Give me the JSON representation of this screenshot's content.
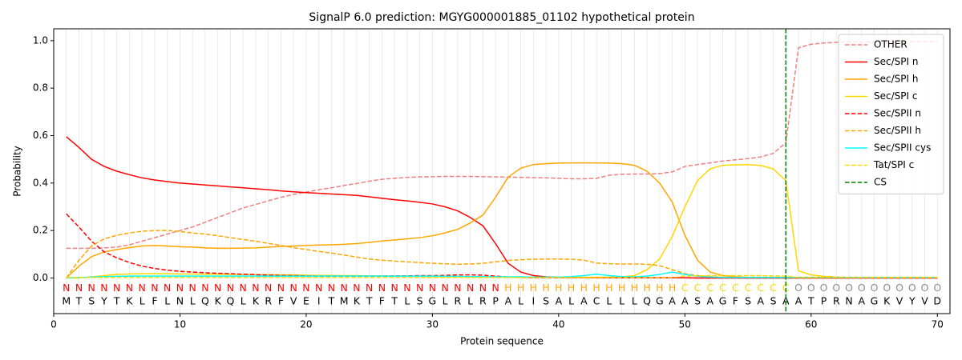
{
  "chart_data": {
    "type": "line",
    "title": "SignalP 6.0 prediction: MGYG000001885_01102 hypothetical protein",
    "xlabel": "Protein sequence",
    "ylabel": "Probability",
    "xlim": [
      0,
      71
    ],
    "ylim": [
      -0.15,
      1.05
    ],
    "xticks": [
      0,
      10,
      20,
      30,
      40,
      50,
      60,
      70
    ],
    "yticks": [
      {
        "value": 0,
        "label": "0.0"
      },
      {
        "value": 0.2,
        "label": "0.2"
      },
      {
        "value": 0.4,
        "label": "0.4"
      },
      {
        "value": 0.6,
        "label": "0.6"
      },
      {
        "value": 0.8,
        "label": "0.8"
      },
      {
        "value": 1,
        "label": "1.0"
      }
    ],
    "grid": true,
    "legend": "upper right",
    "x": [
      1,
      2,
      3,
      4,
      5,
      6,
      7,
      8,
      9,
      10,
      11,
      12,
      13,
      14,
      15,
      16,
      17,
      18,
      19,
      20,
      21,
      22,
      23,
      24,
      25,
      26,
      27,
      28,
      29,
      30,
      31,
      32,
      33,
      34,
      35,
      36,
      37,
      38,
      39,
      40,
      41,
      42,
      43,
      44,
      45,
      46,
      47,
      48,
      49,
      50,
      51,
      52,
      53,
      54,
      55,
      56,
      57,
      58,
      59,
      60,
      61,
      62,
      63,
      64,
      65,
      66,
      67,
      68,
      69,
      70
    ],
    "residues": [
      "M",
      "T",
      "S",
      "Y",
      "T",
      "K",
      "L",
      "F",
      "L",
      "N",
      "L",
      "Q",
      "K",
      "Q",
      "L",
      "K",
      "R",
      "F",
      "V",
      "E",
      "I",
      "T",
      "M",
      "K",
      "T",
      "F",
      "T",
      "L",
      "S",
      "G",
      "L",
      "R",
      "L",
      "R",
      "P",
      "A",
      "L",
      "I",
      "S",
      "A",
      "L",
      "A",
      "C",
      "L",
      "L",
      "L",
      "Q",
      "G",
      "A",
      "A",
      "S",
      "A",
      "G",
      "F",
      "S",
      "A",
      "S",
      "A",
      "A",
      "T",
      "P",
      "R",
      "N",
      "A",
      "G",
      "K",
      "V",
      "Y",
      "V",
      "D"
    ],
    "regions": [
      "N",
      "N",
      "N",
      "N",
      "N",
      "N",
      "N",
      "N",
      "N",
      "N",
      "N",
      "N",
      "N",
      "N",
      "N",
      "N",
      "N",
      "N",
      "N",
      "N",
      "N",
      "N",
      "N",
      "N",
      "N",
      "N",
      "N",
      "N",
      "N",
      "N",
      "N",
      "N",
      "N",
      "N",
      "N",
      "H",
      "H",
      "H",
      "H",
      "H",
      "H",
      "H",
      "H",
      "H",
      "H",
      "H",
      "H",
      "H",
      "H",
      "C",
      "C",
      "C",
      "C",
      "C",
      "C",
      "C",
      "C",
      "C",
      "O",
      "O",
      "O",
      "O",
      "O",
      "O",
      "O",
      "O",
      "O",
      "O",
      "O",
      "O"
    ],
    "region_colors": {
      "N": "#ff0000",
      "H": "#ffa500",
      "C": "#ffd700",
      "O": "#8c8c8c"
    },
    "series": [
      {
        "name": "OTHER",
        "color": "#f08080",
        "dash": true,
        "values": [
          0.125,
          0.125,
          0.125,
          0.127,
          0.13,
          0.14,
          0.155,
          0.17,
          0.185,
          0.2,
          0.215,
          0.235,
          0.255,
          0.275,
          0.295,
          0.31,
          0.325,
          0.34,
          0.352,
          0.362,
          0.372,
          0.38,
          0.39,
          0.398,
          0.408,
          0.416,
          0.42,
          0.424,
          0.426,
          0.427,
          0.428,
          0.428,
          0.428,
          0.427,
          0.426,
          0.425,
          0.424,
          0.423,
          0.422,
          0.42,
          0.418,
          0.418,
          0.42,
          0.433,
          0.437,
          0.438,
          0.438,
          0.44,
          0.447,
          0.47,
          0.478,
          0.485,
          0.493,
          0.498,
          0.503,
          0.51,
          0.525,
          0.57,
          0.97,
          0.985,
          0.99,
          0.993,
          0.995,
          0.995,
          0.995,
          0.995,
          0.996,
          0.996,
          0.996,
          0.996
        ]
      },
      {
        "name": "Sec/SPI n",
        "color": "#ff0000",
        "dash": false,
        "values": [
          0.595,
          0.55,
          0.5,
          0.47,
          0.45,
          0.435,
          0.422,
          0.413,
          0.406,
          0.4,
          0.396,
          0.392,
          0.388,
          0.384,
          0.38,
          0.376,
          0.372,
          0.367,
          0.363,
          0.36,
          0.357,
          0.354,
          0.351,
          0.348,
          0.342,
          0.336,
          0.33,
          0.325,
          0.319,
          0.312,
          0.3,
          0.283,
          0.255,
          0.22,
          0.145,
          0.062,
          0.025,
          0.01,
          0.005,
          0.003,
          0.002,
          0.002,
          0.001,
          0.001,
          0.001,
          0.001,
          0.001,
          0.001,
          0.001,
          0.001,
          0,
          0,
          0,
          0,
          0,
          0,
          0,
          0,
          0,
          0,
          0,
          0,
          0,
          0,
          0,
          0,
          0,
          0,
          0,
          0
        ]
      },
      {
        "name": "Sec/SPI h",
        "color": "#ffa500",
        "dash": false,
        "values": [
          0,
          0.05,
          0.09,
          0.11,
          0.12,
          0.128,
          0.135,
          0.137,
          0.135,
          0.132,
          0.13,
          0.127,
          0.125,
          0.125,
          0.126,
          0.127,
          0.13,
          0.133,
          0.135,
          0.137,
          0.139,
          0.14,
          0.142,
          0.145,
          0.15,
          0.156,
          0.16,
          0.165,
          0.17,
          0.178,
          0.19,
          0.205,
          0.232,
          0.265,
          0.34,
          0.425,
          0.463,
          0.478,
          0.482,
          0.484,
          0.485,
          0.485,
          0.485,
          0.484,
          0.482,
          0.475,
          0.45,
          0.4,
          0.32,
          0.18,
          0.075,
          0.025,
          0.01,
          0.005,
          0.002,
          0.002,
          0.002,
          0.002,
          0.002,
          0.002,
          0.002,
          0.002,
          0.002,
          0.002,
          0.002,
          0.002,
          0.002,
          0.002,
          0.002,
          0.002
        ]
      },
      {
        "name": "Sec/SPI c",
        "color": "#ffd700",
        "dash": false,
        "values": [
          0,
          0,
          0.005,
          0.01,
          0.015,
          0.017,
          0.018,
          0.018,
          0.018,
          0.017,
          0.017,
          0.016,
          0.016,
          0.015,
          0.015,
          0.014,
          0.014,
          0.013,
          0.013,
          0.012,
          0.011,
          0.011,
          0.01,
          0.01,
          0.009,
          0.009,
          0.008,
          0.008,
          0.007,
          0.006,
          0.006,
          0.006,
          0.005,
          0.005,
          0.005,
          0.004,
          0.004,
          0.003,
          0.003,
          0.003,
          0.003,
          0.003,
          0.003,
          0.004,
          0.005,
          0.01,
          0.035,
          0.08,
          0.175,
          0.3,
          0.41,
          0.46,
          0.475,
          0.477,
          0.478,
          0.474,
          0.46,
          0.41,
          0.03,
          0.013,
          0.007,
          0.004,
          0.002,
          0.002,
          0.002,
          0.002,
          0.002,
          0.002,
          0.002,
          0.002
        ]
      },
      {
        "name": "Sec/SPII n",
        "color": "#ff0000",
        "dash": true,
        "values": [
          0.27,
          0.215,
          0.155,
          0.11,
          0.085,
          0.065,
          0.05,
          0.04,
          0.033,
          0.028,
          0.025,
          0.022,
          0.02,
          0.018,
          0.016,
          0.014,
          0.012,
          0.011,
          0.01,
          0.009,
          0.008,
          0.008,
          0.008,
          0.008,
          0.008,
          0.008,
          0.009,
          0.009,
          0.01,
          0.01,
          0.011,
          0.013,
          0.013,
          0.012,
          0.008,
          0.004,
          0.002,
          0.001,
          0.001,
          0.001,
          0.001,
          0.001,
          0.001,
          0.001,
          0.001,
          0.001,
          0.001,
          0.001,
          0.001,
          0.001,
          0,
          0,
          0,
          0,
          0,
          0,
          0,
          0,
          0,
          0,
          0,
          0,
          0,
          0,
          0,
          0,
          0,
          0,
          0,
          0
        ]
      },
      {
        "name": "Sec/SPII h",
        "color": "#ffa500",
        "dash": true,
        "values": [
          0,
          0.075,
          0.135,
          0.165,
          0.18,
          0.19,
          0.197,
          0.2,
          0.2,
          0.196,
          0.19,
          0.185,
          0.178,
          0.17,
          0.162,
          0.155,
          0.146,
          0.137,
          0.128,
          0.12,
          0.112,
          0.105,
          0.097,
          0.088,
          0.08,
          0.075,
          0.071,
          0.068,
          0.065,
          0.062,
          0.06,
          0.058,
          0.059,
          0.062,
          0.068,
          0.074,
          0.077,
          0.079,
          0.08,
          0.08,
          0.079,
          0.075,
          0.063,
          0.06,
          0.059,
          0.059,
          0.058,
          0.052,
          0.035,
          0.018,
          0.01,
          0.006,
          0.003,
          0.003,
          0.003,
          0.003,
          0.003,
          0.003,
          0.003,
          0.003,
          0.003,
          0.003,
          0.003,
          0.003,
          0.003,
          0.003,
          0.003,
          0.003,
          0.003,
          0.003
        ]
      },
      {
        "name": "Sec/SPII cys",
        "color": "#00ffff",
        "dash": false,
        "values": [
          0,
          0.002,
          0.004,
          0.006,
          0.007,
          0.008,
          0.008,
          0.008,
          0.008,
          0.008,
          0.008,
          0.008,
          0.008,
          0.008,
          0.008,
          0.008,
          0.008,
          0.008,
          0.008,
          0.008,
          0.008,
          0.008,
          0.008,
          0.008,
          0.008,
          0.008,
          0.008,
          0.008,
          0.008,
          0.008,
          0.007,
          0.007,
          0.006,
          0.006,
          0.005,
          0.005,
          0.005,
          0.004,
          0.004,
          0.004,
          0.006,
          0.01,
          0.016,
          0.01,
          0.006,
          0.005,
          0.008,
          0.015,
          0.025,
          0.015,
          0.007,
          0.004,
          0.002,
          0.002,
          0.002,
          0.002,
          0.002,
          0.002,
          0.002,
          0.002,
          0.002,
          0.002,
          0.002,
          0.002,
          0.002,
          0.002,
          0.002,
          0.002,
          0.002,
          0.002
        ]
      },
      {
        "name": "Tat/SPI c",
        "color": "#ffd700",
        "dash": true,
        "values": [
          0.002,
          0.002,
          0.002,
          0.002,
          0.002,
          0.002,
          0.002,
          0.002,
          0.002,
          0.002,
          0.002,
          0.002,
          0.002,
          0.002,
          0.002,
          0.002,
          0.002,
          0.002,
          0.002,
          0.002,
          0.002,
          0.002,
          0.002,
          0.002,
          0.002,
          0.002,
          0.002,
          0.002,
          0.002,
          0.002,
          0.002,
          0.002,
          0.002,
          0.002,
          0.002,
          0.002,
          0.002,
          0.002,
          0.002,
          0.002,
          0.002,
          0.002,
          0.002,
          0.002,
          0.002,
          0.002,
          0.002,
          0.002,
          0.002,
          0.008,
          0.009,
          0.01,
          0.01,
          0.01,
          0.01,
          0.01,
          0.009,
          0.008,
          0.002,
          0.002,
          0.002,
          0.002,
          0.002,
          0.002,
          0.002,
          0.002,
          0.002,
          0.002,
          0.002,
          0.002
        ]
      }
    ],
    "cs": {
      "name": "CS",
      "x": 58,
      "color": "#008000"
    }
  }
}
